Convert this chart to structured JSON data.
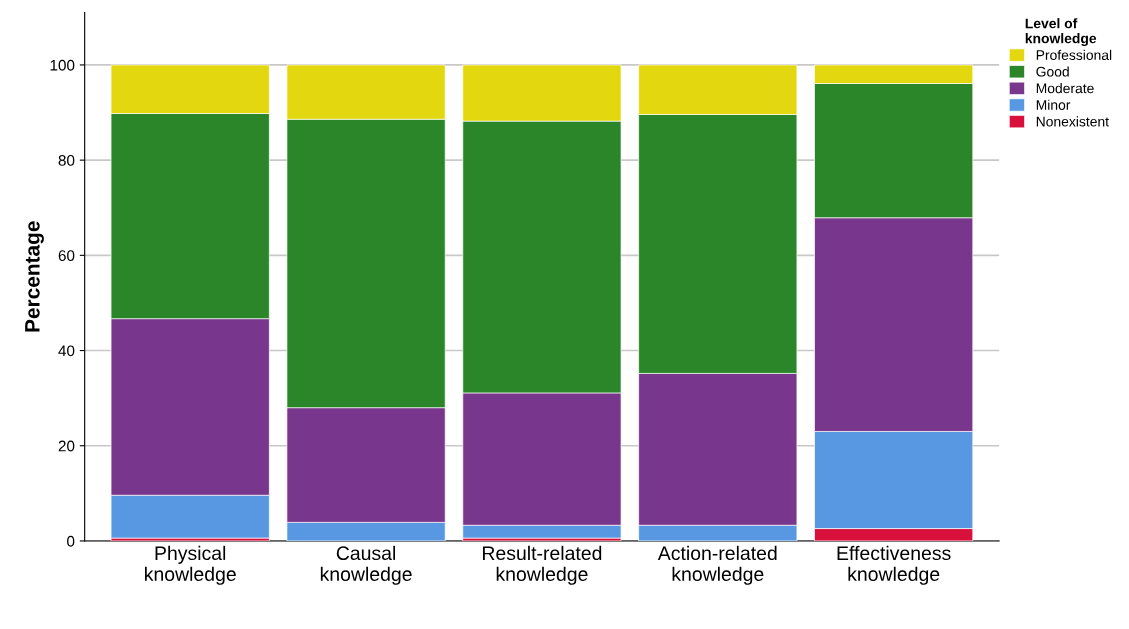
{
  "chart_data": {
    "type": "bar",
    "stacked": true,
    "ylabel": "Percentage",
    "legend_title": "Level of\nknowledge",
    "legend": "top right",
    "categories": [
      "Physical\nknowledge",
      "Causal\nknowledge",
      "Result-related\nknowledge",
      "Action-related\nknowledge",
      "Effectiveness\nknowledge"
    ],
    "series": [
      {
        "name": "Nonexistent",
        "color": "#d8103b",
        "values": [
          0.6,
          0,
          0.6,
          0,
          2.6
        ]
      },
      {
        "name": "Minor",
        "color": "#5898e2",
        "values": [
          9.0,
          3.9,
          2.7,
          3.3,
          20.4
        ]
      },
      {
        "name": "Moderate",
        "color": "#78368c",
        "values": [
          37.1,
          24.1,
          27.8,
          31.9,
          44.9
        ]
      },
      {
        "name": "Good",
        "color": "#2a8629",
        "values": [
          43.1,
          60.6,
          57.1,
          54.4,
          28.2
        ]
      },
      {
        "name": "Professional",
        "color": "#e3d80f",
        "values": [
          10.2,
          11.4,
          11.8,
          10.4,
          3.9
        ]
      }
    ],
    "ylim": [
      0,
      111
    ],
    "yticks": [
      0,
      20,
      40,
      60,
      80,
      100
    ],
    "grid": "y"
  }
}
